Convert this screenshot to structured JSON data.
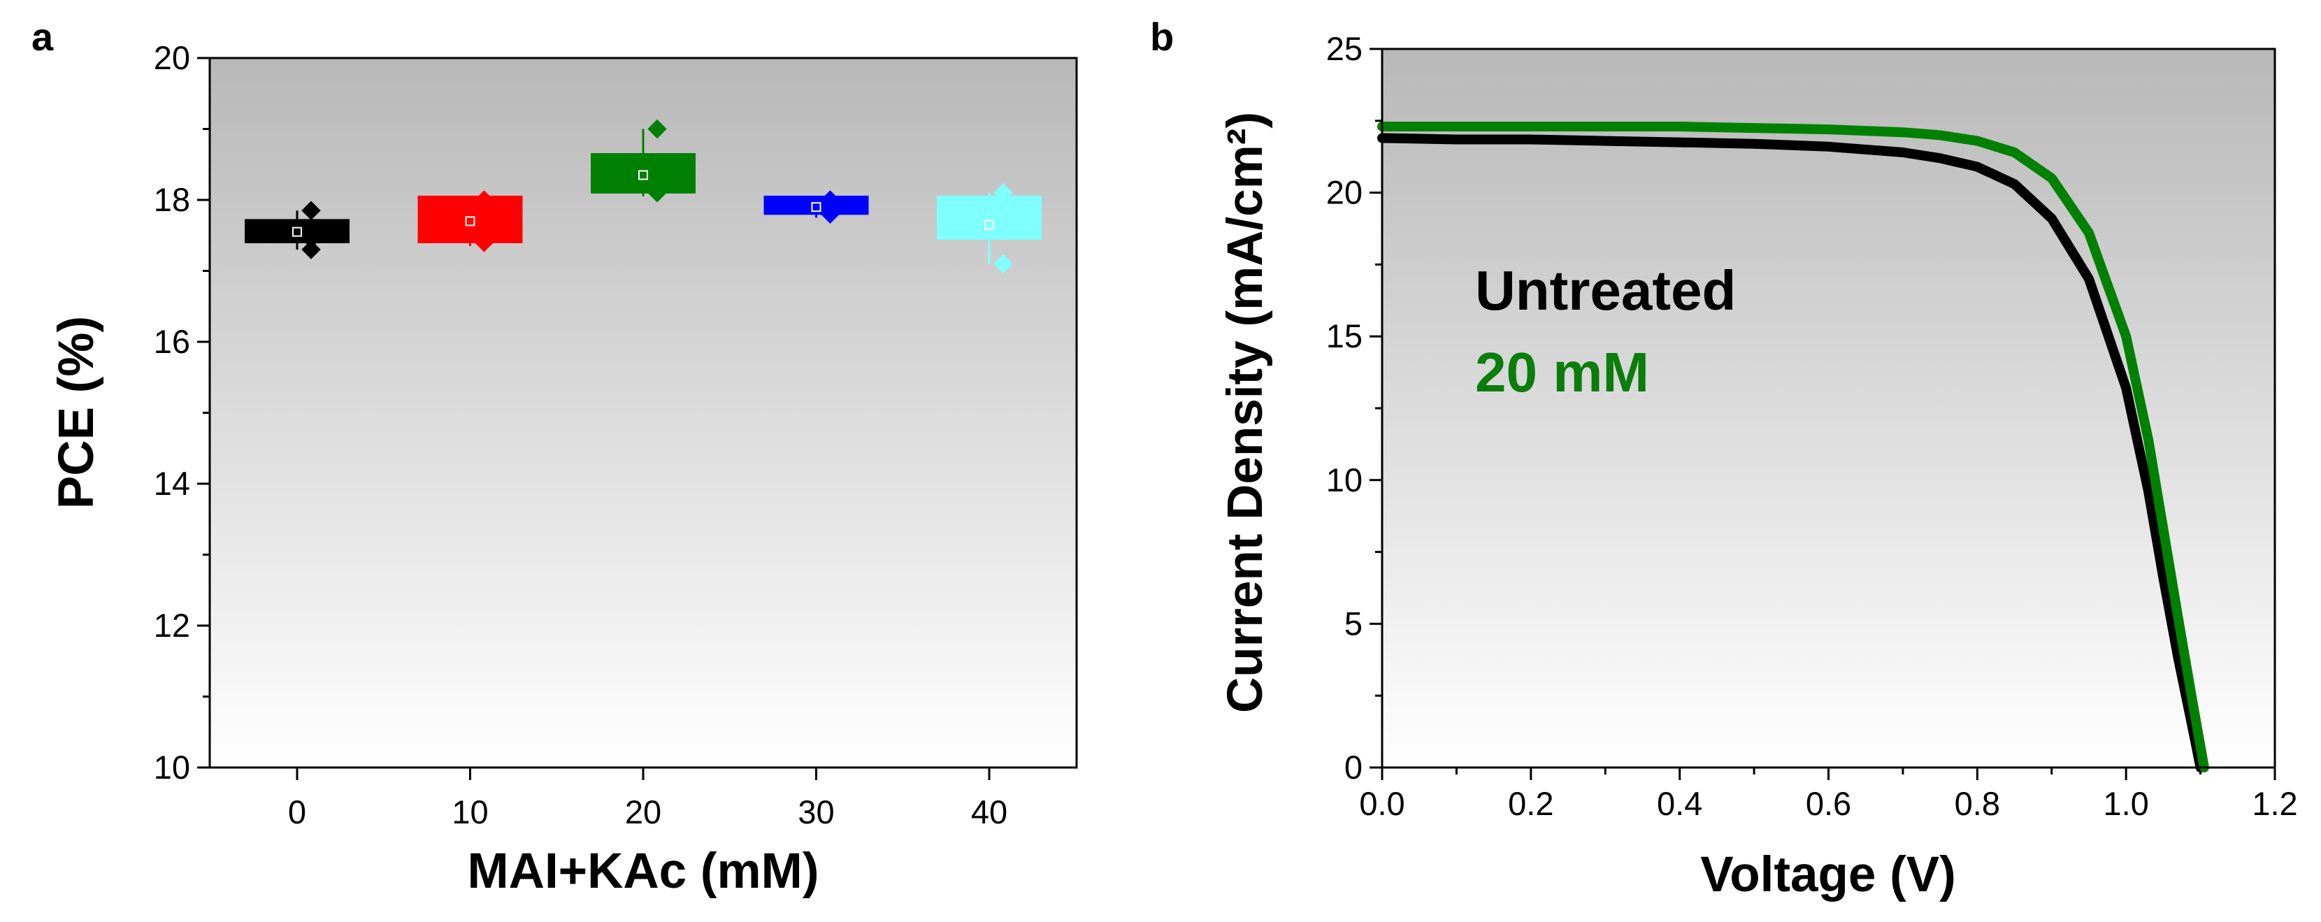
{
  "chart_data": [
    {
      "panel": "a",
      "type": "box",
      "title": "",
      "xlabel": "MAI+KAc (mM)",
      "ylabel": "PCE (%)",
      "categories": [
        "0",
        "10",
        "20",
        "30",
        "40"
      ],
      "ylim": [
        10,
        20
      ],
      "yticks": [
        "10",
        "12",
        "14",
        "16",
        "18",
        "20"
      ],
      "series": [
        {
          "name": "0",
          "color": "#000000",
          "q1": 17.4,
          "q3": 17.72,
          "median": 17.55,
          "mean": 17.55,
          "min": 17.3,
          "max": 17.85,
          "points": [
            17.3,
            17.45,
            17.6,
            17.85
          ]
        },
        {
          "name": "10",
          "color": "#ff0000",
          "q1": 17.4,
          "q3": 18.05,
          "median": 17.7,
          "mean": 17.7,
          "min": 17.35,
          "max": 18.05,
          "points": [
            17.4,
            17.9,
            18.0
          ]
        },
        {
          "name": "20",
          "color": "#008000",
          "q1": 18.1,
          "q3": 18.65,
          "median": 18.35,
          "mean": 18.35,
          "min": 18.05,
          "max": 19.0,
          "points": [
            18.1,
            18.5,
            19.0
          ]
        },
        {
          "name": "30",
          "color": "#0000ff",
          "q1": 17.8,
          "q3": 18.05,
          "median": 17.95,
          "mean": 17.9,
          "min": 17.75,
          "max": 18.05,
          "points": [
            17.8,
            18.0
          ]
        },
        {
          "name": "40",
          "color": "#80ffff",
          "q1": 17.45,
          "q3": 18.05,
          "median": 17.7,
          "mean": 17.65,
          "min": 17.1,
          "max": 18.1,
          "points": [
            17.1,
            17.65,
            18.1
          ]
        }
      ]
    },
    {
      "panel": "b",
      "type": "line",
      "title": "",
      "xlabel": "Voltage (V)",
      "ylabel": "Current Density (mA/cm²)",
      "xlim": [
        0,
        1.2
      ],
      "ylim": [
        0,
        25
      ],
      "xticks": [
        "0.0",
        "0.2",
        "0.4",
        "0.6",
        "0.8",
        "1.0",
        "1.2"
      ],
      "yticks": [
        "0",
        "5",
        "10",
        "15",
        "20",
        "25"
      ],
      "legend": [
        "Untreated",
        "20 mM"
      ],
      "legend_position": "middle-left",
      "series": [
        {
          "name": "Untreated",
          "color": "#000000",
          "x": [
            0.0,
            0.1,
            0.2,
            0.3,
            0.4,
            0.5,
            0.6,
            0.7,
            0.75,
            0.8,
            0.85,
            0.9,
            0.95,
            1.0,
            1.03,
            1.05,
            1.07,
            1.09,
            1.1
          ],
          "y": [
            21.9,
            21.85,
            21.85,
            21.8,
            21.75,
            21.7,
            21.6,
            21.4,
            21.2,
            20.9,
            20.3,
            19.1,
            17.0,
            13.2,
            9.6,
            6.6,
            3.8,
            1.3,
            0.0
          ]
        },
        {
          "name": "20 mM",
          "color": "#008000",
          "x": [
            0.0,
            0.1,
            0.2,
            0.3,
            0.4,
            0.5,
            0.6,
            0.7,
            0.75,
            0.8,
            0.85,
            0.9,
            0.95,
            1.0,
            1.03,
            1.05,
            1.07,
            1.09,
            1.105
          ],
          "y": [
            22.3,
            22.3,
            22.3,
            22.3,
            22.3,
            22.25,
            22.2,
            22.1,
            22.0,
            21.8,
            21.4,
            20.5,
            18.6,
            15.0,
            11.4,
            8.3,
            5.2,
            2.2,
            0.0
          ]
        }
      ]
    }
  ]
}
